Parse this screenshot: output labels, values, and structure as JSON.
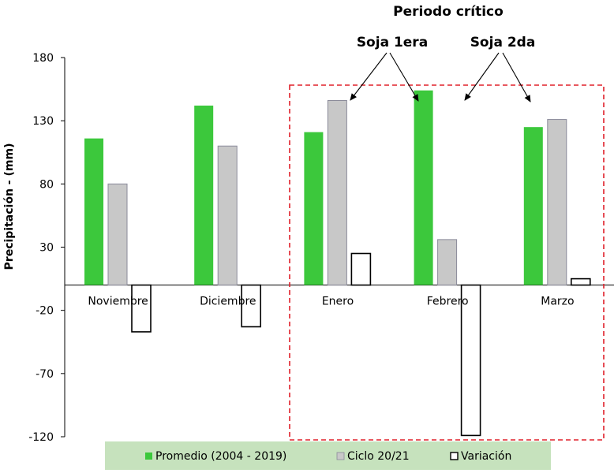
{
  "chart_data": {
    "type": "bar",
    "categories": [
      "Noviembre",
      "Diciembre",
      "Enero",
      "Febrero",
      "Marzo"
    ],
    "series": [
      {
        "name": "Promedio (2004 - 2019)",
        "values": [
          116,
          142,
          121,
          154,
          125
        ],
        "color": "#3cc83c"
      },
      {
        "name": "Ciclo 20/21",
        "values": [
          80,
          110,
          146,
          36,
          131
        ],
        "color": "#c8c8c8"
      },
      {
        "name": "Variación",
        "values": [
          -37,
          -33,
          25,
          -119,
          5
        ],
        "color": "#ffffff"
      }
    ],
    "ylabel": "Precipitación - (mm)",
    "ylim": [
      -120,
      180
    ],
    "yticks": [
      180,
      130,
      80,
      30,
      -20,
      -70,
      -120
    ],
    "grid": false,
    "legend": "bottom",
    "annotations": {
      "title": "Periodo crítico",
      "labels": [
        "Soja 1era",
        "Soja 2da"
      ],
      "highlight_categories": [
        "Enero",
        "Febrero",
        "Marzo"
      ]
    }
  }
}
